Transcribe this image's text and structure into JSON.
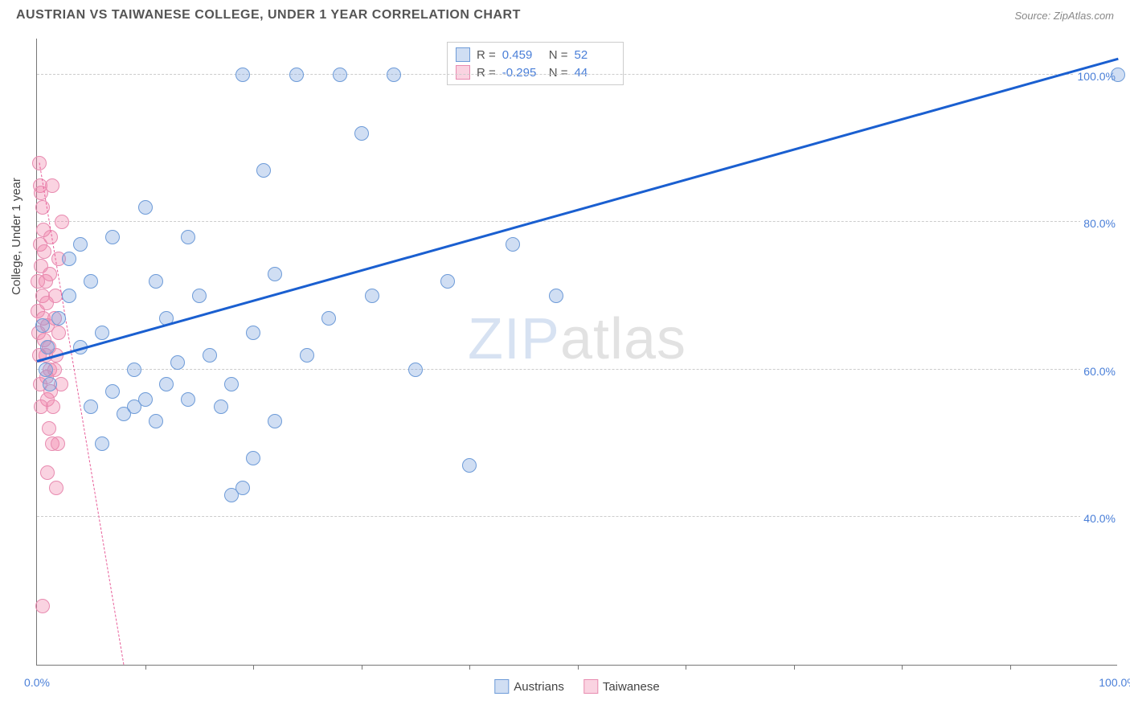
{
  "header": {
    "title": "AUSTRIAN VS TAIWANESE COLLEGE, UNDER 1 YEAR CORRELATION CHART",
    "source": "Source: ZipAtlas.com"
  },
  "ylabel": "College, Under 1 year",
  "watermark": {
    "part1": "ZIP",
    "part2": "atlas"
  },
  "colors": {
    "series_a_fill": "rgba(120,160,220,0.35)",
    "series_a_stroke": "#6d9bd8",
    "series_b_fill": "rgba(240,130,170,0.35)",
    "series_b_stroke": "#e88bb0",
    "trend_a": "#1a5fd0",
    "trend_b": "#e85f9a",
    "tick_text": "#4a7fd8",
    "grid": "#cccccc"
  },
  "chart": {
    "type": "scatter",
    "xlim": [
      0,
      100
    ],
    "ylim": [
      20,
      105
    ],
    "yticks": [
      {
        "v": 40,
        "label": "40.0%"
      },
      {
        "v": 60,
        "label": "60.0%"
      },
      {
        "v": 80,
        "label": "80.0%"
      },
      {
        "v": 100,
        "label": "100.0%"
      }
    ],
    "xticks_minor": [
      10,
      20,
      30,
      40,
      50,
      60,
      70,
      80,
      90
    ],
    "xtick_labels": [
      {
        "v": 0,
        "label": "0.0%"
      },
      {
        "v": 100,
        "label": "100.0%"
      }
    ],
    "marker_radius": 9,
    "series_a": {
      "name": "Austrians",
      "points": [
        [
          2,
          67
        ],
        [
          3,
          70
        ],
        [
          3,
          75
        ],
        [
          4,
          63
        ],
        [
          4,
          77
        ],
        [
          5,
          55
        ],
        [
          5,
          72
        ],
        [
          6,
          50
        ],
        [
          6,
          65
        ],
        [
          7,
          78
        ],
        [
          7,
          57
        ],
        [
          8,
          54
        ],
        [
          9,
          60
        ],
        [
          9,
          55
        ],
        [
          10,
          56
        ],
        [
          10,
          82
        ],
        [
          11,
          53
        ],
        [
          11,
          72
        ],
        [
          12,
          58
        ],
        [
          12,
          67
        ],
        [
          13,
          61
        ],
        [
          14,
          78
        ],
        [
          14,
          56
        ],
        [
          15,
          70
        ],
        [
          16,
          62
        ],
        [
          17,
          55
        ],
        [
          18,
          58
        ],
        [
          18,
          43
        ],
        [
          19,
          44
        ],
        [
          19,
          100
        ],
        [
          20,
          65
        ],
        [
          20,
          48
        ],
        [
          21,
          87
        ],
        [
          22,
          73
        ],
        [
          22,
          53
        ],
        [
          24,
          100
        ],
        [
          25,
          62
        ],
        [
          27,
          67
        ],
        [
          28,
          100
        ],
        [
          30,
          92
        ],
        [
          31,
          70
        ],
        [
          33,
          100
        ],
        [
          35,
          60
        ],
        [
          38,
          72
        ],
        [
          40,
          47
        ],
        [
          44,
          77
        ],
        [
          48,
          70
        ],
        [
          0.5,
          66
        ],
        [
          0.8,
          60
        ],
        [
          1,
          63
        ],
        [
          1.2,
          58
        ],
        [
          100,
          100
        ]
      ],
      "trend": {
        "x1": 0,
        "y1": 61,
        "x2": 100,
        "y2": 102,
        "width": 3,
        "dashed": false
      }
    },
    "series_b": {
      "name": "Taiwanese",
      "points": [
        [
          0.2,
          88
        ],
        [
          0.3,
          85
        ],
        [
          0.3,
          77
        ],
        [
          0.4,
          84
        ],
        [
          0.4,
          74
        ],
        [
          0.5,
          82
        ],
        [
          0.5,
          70
        ],
        [
          0.6,
          79
        ],
        [
          0.6,
          67
        ],
        [
          0.7,
          76
        ],
        [
          0.7,
          64
        ],
        [
          0.8,
          72
        ],
        [
          0.8,
          62
        ],
        [
          0.9,
          69
        ],
        [
          0.9,
          59
        ],
        [
          1.0,
          66
        ],
        [
          1.0,
          56
        ],
        [
          1.1,
          63
        ],
        [
          1.1,
          52
        ],
        [
          1.2,
          60
        ],
        [
          1.2,
          73
        ],
        [
          1.3,
          78
        ],
        [
          1.3,
          57
        ],
        [
          1.4,
          85
        ],
        [
          1.4,
          50
        ],
        [
          1.5,
          55
        ],
        [
          1.6,
          67
        ],
        [
          1.6,
          60
        ],
        [
          1.7,
          70
        ],
        [
          1.8,
          62
        ],
        [
          1.8,
          44
        ],
        [
          1.9,
          50
        ],
        [
          2.0,
          65
        ],
        [
          2.0,
          75
        ],
        [
          2.2,
          58
        ],
        [
          2.3,
          80
        ],
        [
          0.5,
          28
        ],
        [
          1.0,
          46
        ],
        [
          0.2,
          62
        ],
        [
          0.3,
          58
        ],
        [
          0.4,
          55
        ],
        [
          0.1,
          72
        ],
        [
          0.1,
          68
        ],
        [
          0.15,
          65
        ]
      ],
      "trend": {
        "x1": 0.2,
        "y1": 88,
        "x2": 8,
        "y2": 20,
        "width": 1.5,
        "dashed": true
      }
    }
  },
  "stats": [
    {
      "swatch_fill": "rgba(120,160,220,0.35)",
      "swatch_stroke": "#6d9bd8",
      "r_label": "R =",
      "r_val": "0.459",
      "n_label": "N =",
      "n_val": "52"
    },
    {
      "swatch_fill": "rgba(240,130,170,0.35)",
      "swatch_stroke": "#e88bb0",
      "r_label": "R =",
      "r_val": "-0.295",
      "n_label": "N =",
      "n_val": "44"
    }
  ],
  "legend": [
    {
      "swatch_fill": "rgba(120,160,220,0.35)",
      "swatch_stroke": "#6d9bd8",
      "label": "Austrians"
    },
    {
      "swatch_fill": "rgba(240,130,170,0.35)",
      "swatch_stroke": "#e88bb0",
      "label": "Taiwanese"
    }
  ]
}
